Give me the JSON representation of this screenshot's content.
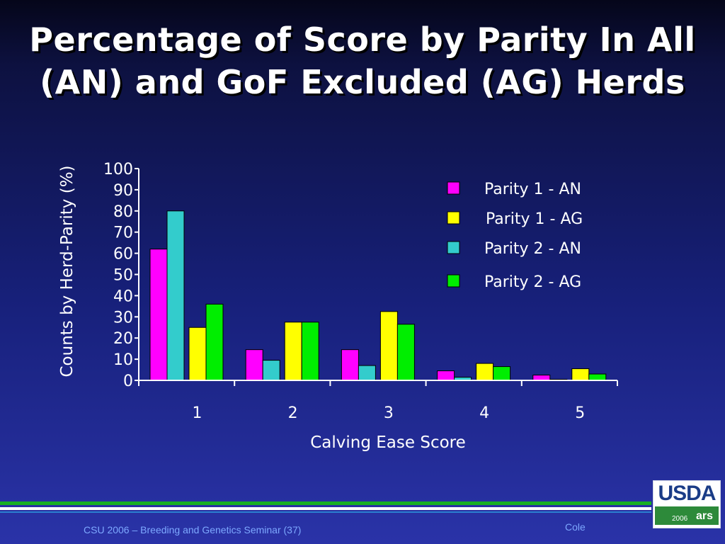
{
  "slide": {
    "title_line1": "Percentage of Score by Parity In All",
    "title_line2": "(AN) and GoF Excluded (AG) Herds",
    "footer_text": "CSU 2006 – Breeding and Genetics Seminar (37)",
    "footer_author": "Cole",
    "logo": {
      "text": "USDA",
      "year": "2006",
      "mark": "ars"
    }
  },
  "colors": {
    "background": "#17207a",
    "parity1_an": "#ff00ff",
    "parity1_ag": "#ffff00",
    "parity2_an": "#33cccc",
    "parity2_ag": "#00ee00",
    "text": "#ffffff",
    "footer_text": "#7da8ff"
  },
  "chart_data": {
    "type": "bar",
    "title": "",
    "xlabel": "Calving Ease Score",
    "ylabel": "Counts by Herd-Parity (%)",
    "ylim": [
      0,
      100
    ],
    "yticks": [
      "0",
      "10",
      "20",
      "30",
      "40",
      "50",
      "60",
      "70",
      "80",
      "90",
      "100"
    ],
    "categories": [
      "1",
      "2",
      "3",
      "4",
      "5"
    ],
    "legend_position": "top-right",
    "grid": false,
    "series": [
      {
        "name": "Parity 1 - AN",
        "color": "#ff00ff",
        "values": [
          62,
          14.5,
          14.5,
          4.5,
          2.5
        ]
      },
      {
        "name": "Parity 2 - AN",
        "color": "#33cccc",
        "values": [
          80,
          9.5,
          7,
          1.5,
          0.5
        ]
      },
      {
        "name": "Parity 1 - AG",
        "color": "#ffff00",
        "values": [
          25,
          27.5,
          32.5,
          8,
          5.5
        ]
      },
      {
        "name": "Parity 2 - AG",
        "color": "#00ee00",
        "values": [
          36,
          27.5,
          26.5,
          6.5,
          3
        ]
      }
    ],
    "legend_order": [
      "Parity 1 - AN",
      "Parity 1 - AG",
      "Parity 2 - AN",
      "Parity 2 - AG"
    ]
  }
}
